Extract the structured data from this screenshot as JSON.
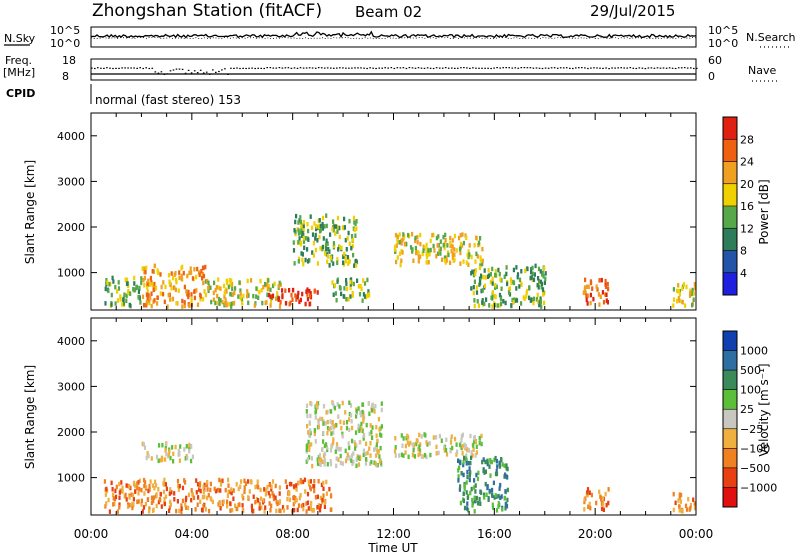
{
  "header": {
    "station": "Zhongshan Station (fitACF)",
    "beam": "Beam 02",
    "date": "29/Jul/2015"
  },
  "top_panels": {
    "nsky_label": "N.Sky",
    "nsearch_label": "N.Search",
    "noise_ticks": [
      "10^5",
      "10^0"
    ],
    "freq_label": "Freq.",
    "freq_unit": "[MHz]",
    "freq_ticks": [
      "18",
      "8"
    ],
    "nave_label": "Nave",
    "nave_ticks": [
      "60",
      "0"
    ],
    "cpid_label": "CPID",
    "cpid_text": "normal (fast stereo) 153"
  },
  "chart_data": [
    {
      "type": "heatmap",
      "title": "",
      "ylabel": "Slant Range [km]",
      "xlabel": "",
      "x_ticks": [
        "00:00",
        "04:00",
        "08:00",
        "12:00",
        "16:00",
        "20:00",
        "00:00"
      ],
      "y_ticks": [
        1000,
        2000,
        3000,
        4000
      ],
      "ylim": [
        180,
        4500
      ],
      "xlim_hours": [
        0,
        24
      ],
      "colorbar": {
        "label": "Power [dB]",
        "ticks": [
          "4",
          "8",
          "12",
          "16",
          "20",
          "24",
          "28"
        ],
        "colors": [
          "#1f1fe0",
          "#2255aa",
          "#2e7d5a",
          "#57a848",
          "#f0d000",
          "#f0a020",
          "#ef6010",
          "#e02010"
        ]
      },
      "scatter_regions_hours_km": [
        {
          "h0": 0.5,
          "h1": 2.0,
          "r0": 300,
          "r1": 950,
          "level": 3
        },
        {
          "h0": 2.0,
          "h1": 4.5,
          "r0": 300,
          "r1": 1200,
          "level": 5
        },
        {
          "h0": 4.5,
          "h1": 7.5,
          "r0": 300,
          "r1": 900,
          "level": 4
        },
        {
          "h0": 7.0,
          "h1": 9.0,
          "r0": 350,
          "r1": 700,
          "level": 7
        },
        {
          "h0": 8.0,
          "h1": 10.5,
          "r0": 1200,
          "r1": 2300,
          "level": 3
        },
        {
          "h0": 9.5,
          "h1": 11.0,
          "r0": 400,
          "r1": 900,
          "level": 3
        },
        {
          "h0": 12.0,
          "h1": 15.5,
          "r0": 1200,
          "r1": 1900,
          "level": 4
        },
        {
          "h0": 15.0,
          "h1": 18.0,
          "r0": 300,
          "r1": 1200,
          "level": 3
        },
        {
          "h0": 19.5,
          "h1": 20.5,
          "r0": 300,
          "r1": 900,
          "level": 6
        },
        {
          "h0": 23.0,
          "h1": 24.0,
          "r0": 300,
          "r1": 800,
          "level": 4
        }
      ]
    },
    {
      "type": "heatmap",
      "title": "",
      "ylabel": "Slant Range [km]",
      "xlabel": "Time UT",
      "x_ticks": [
        "00:00",
        "04:00",
        "08:00",
        "12:00",
        "16:00",
        "20:00",
        "00:00"
      ],
      "y_ticks": [
        1000,
        2000,
        3000,
        4000
      ],
      "ylim": [
        180,
        4500
      ],
      "xlim_hours": [
        0,
        24
      ],
      "colorbar": {
        "label": "Velocity [m s⁻¹]",
        "ticks": [
          "1000",
          "500",
          "100",
          "25",
          "−25",
          "−100",
          "−500",
          "−1000"
        ],
        "colors": [
          "#1040b0",
          "#2e6ea0",
          "#3a8a5a",
          "#5bbf3a",
          "#c8c8c0",
          "#f0b040",
          "#f08020",
          "#e84010",
          "#e01010"
        ]
      },
      "scatter_regions_hours_km": [
        {
          "h0": 0.5,
          "h1": 9.5,
          "r0": 300,
          "r1": 1000,
          "level": 6
        },
        {
          "h0": 2.0,
          "h1": 4.0,
          "r0": 1400,
          "r1": 1800,
          "level": 4
        },
        {
          "h0": 8.5,
          "h1": 11.5,
          "r0": 1300,
          "r1": 2700,
          "level": 4
        },
        {
          "h0": 12.0,
          "h1": 15.5,
          "r0": 1500,
          "r1": 2000,
          "level": 4
        },
        {
          "h0": 14.5,
          "h1": 16.5,
          "r0": 300,
          "r1": 1500,
          "level": 2
        },
        {
          "h0": 19.5,
          "h1": 20.5,
          "r0": 300,
          "r1": 800,
          "level": 6
        },
        {
          "h0": 23.0,
          "h1": 24.0,
          "r0": 300,
          "r1": 700,
          "level": 6
        }
      ]
    }
  ]
}
